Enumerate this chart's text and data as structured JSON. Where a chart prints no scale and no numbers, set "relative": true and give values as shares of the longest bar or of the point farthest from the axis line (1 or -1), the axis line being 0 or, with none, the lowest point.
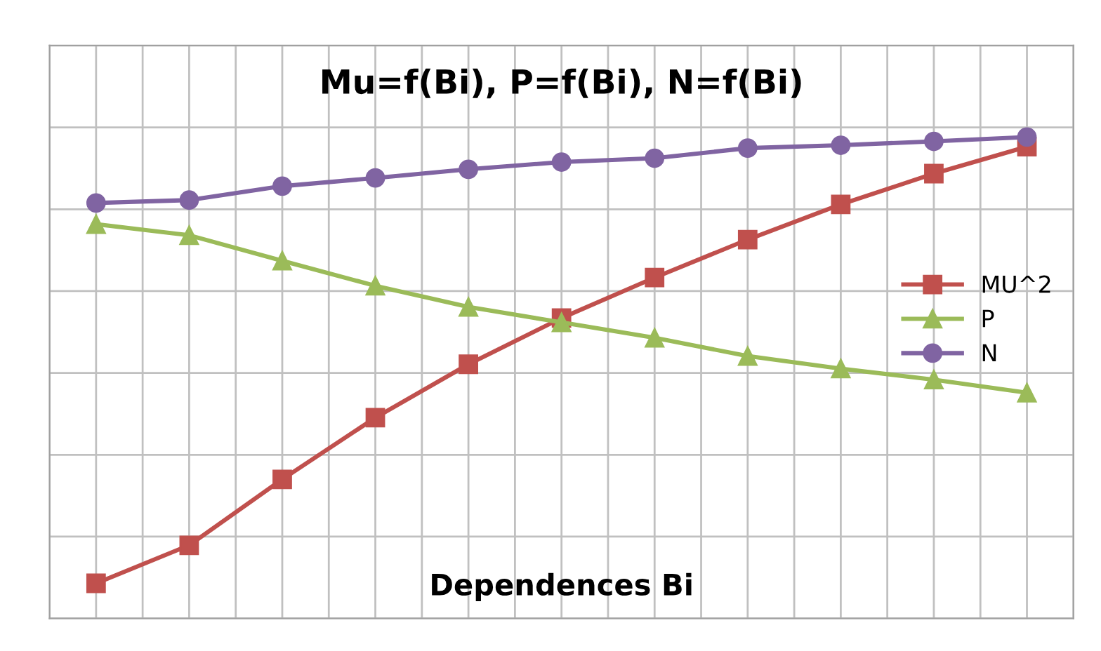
{
  "chart_data": {
    "type": "line",
    "title": "Mu=f(Bi), P=f(Bi), N=f(Bi)",
    "xlabel": "Dependences Bi",
    "relative": true,
    "grid": true,
    "legend": "right",
    "categories": [
      null,
      null,
      null,
      null,
      null,
      null,
      null,
      null,
      null,
      null,
      null
    ],
    "series": [
      {
        "name": "MU^2",
        "color": "#c0504d",
        "marker": "square",
        "values": [
          0.073,
          0.152,
          0.289,
          0.417,
          0.528,
          0.624,
          0.708,
          0.787,
          0.86,
          0.924,
          0.98
        ]
      },
      {
        "name": "P",
        "color": "#9bbb59",
        "marker": "triangle",
        "values": [
          0.819,
          0.796,
          0.743,
          0.691,
          0.647,
          0.615,
          0.583,
          0.545,
          0.519,
          0.496,
          0.469
        ]
      },
      {
        "name": "N",
        "color": "#8064a2",
        "marker": "circle",
        "values": [
          0.863,
          0.869,
          0.898,
          0.915,
          0.933,
          0.948,
          0.956,
          0.977,
          0.983,
          0.991,
          1
        ]
      }
    ]
  }
}
